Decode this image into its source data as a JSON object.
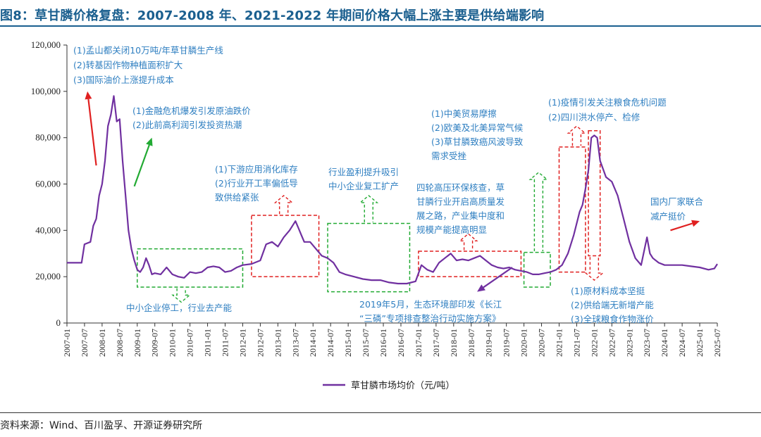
{
  "header": {
    "figure_title": "图8：草甘膦价格复盘：2007-2008 年、2021-2022 年期间价格大幅上涨主要是供给端影响"
  },
  "footer": {
    "source": "资料来源：Wind、百川盈孚、开源证券研究所"
  },
  "colors": {
    "title": "#1a5f8f",
    "series": "#7030a0",
    "annotation_text": "#2f7fc1",
    "box_red": "#e02020",
    "box_green": "#22aa33"
  },
  "chart_data": {
    "type": "line",
    "ylim": [
      0,
      120000
    ],
    "yticks": [
      "0",
      "20,000",
      "40,000",
      "60,000",
      "80,000",
      "100,000",
      "120,000"
    ],
    "ytick_values": [
      0,
      20000,
      40000,
      60000,
      80000,
      100000,
      120000
    ],
    "xticks": [
      "2007-01",
      "2007-07",
      "2008-01",
      "2008-07",
      "2009-01",
      "2009-07",
      "2010-01",
      "2010-07",
      "2011-01",
      "2011-07",
      "2012-01",
      "2012-07",
      "2013-01",
      "2013-07",
      "2014-01",
      "2014-07",
      "2015-01",
      "2015-07",
      "2016-01",
      "2016-07",
      "2017-01",
      "2017-07",
      "2018-01",
      "2018-07",
      "2019-01",
      "2019-07",
      "2020-01",
      "2020-07",
      "2021-01",
      "2021-07",
      "2022-01",
      "2022-07",
      "2023-01",
      "2023-07",
      "2024-01",
      "2024-07",
      "2025-01",
      "2025-07"
    ],
    "x_start": "2007-01",
    "x_end": "2025-07",
    "grid": false,
    "legend_position": "bottom",
    "series": [
      {
        "name": "草甘膦市场均价（元/吨）",
        "x": [
          "2007-01",
          "2007-06",
          "2007-07",
          "2007-09",
          "2007-10",
          "2007-11",
          "2007-12",
          "2008-01",
          "2008-02",
          "2008-03",
          "2008-04",
          "2008-05",
          "2008-06",
          "2008-07",
          "2008-08",
          "2008-09",
          "2008-10",
          "2008-11",
          "2008-12",
          "2009-01",
          "2009-02",
          "2009-03",
          "2009-04",
          "2009-05",
          "2009-06",
          "2009-07",
          "2009-09",
          "2009-11",
          "2010-01",
          "2010-03",
          "2010-05",
          "2010-07",
          "2010-09",
          "2010-11",
          "2011-01",
          "2011-03",
          "2011-05",
          "2011-07",
          "2011-09",
          "2011-11",
          "2012-01",
          "2012-04",
          "2012-07",
          "2012-09",
          "2012-11",
          "2013-01",
          "2013-03",
          "2013-05",
          "2013-07",
          "2013-08",
          "2013-09",
          "2013-10",
          "2013-12",
          "2014-02",
          "2014-04",
          "2014-06",
          "2014-08",
          "2014-10",
          "2014-12",
          "2015-03",
          "2015-06",
          "2015-09",
          "2015-12",
          "2016-03",
          "2016-06",
          "2016-09",
          "2016-12",
          "2017-02",
          "2017-04",
          "2017-06",
          "2017-08",
          "2017-10",
          "2017-12",
          "2018-02",
          "2018-04",
          "2018-06",
          "2018-08",
          "2018-10",
          "2018-12",
          "2019-02",
          "2019-04",
          "2019-06",
          "2019-08",
          "2019-10",
          "2019-12",
          "2020-02",
          "2020-04",
          "2020-06",
          "2020-08",
          "2020-10",
          "2020-12",
          "2021-02",
          "2021-04",
          "2021-06",
          "2021-08",
          "2021-09",
          "2021-10",
          "2021-11",
          "2021-12",
          "2022-01",
          "2022-02",
          "2022-03",
          "2022-05",
          "2022-07",
          "2022-09",
          "2022-11",
          "2023-01",
          "2023-03",
          "2023-05",
          "2023-07",
          "2023-08",
          "2023-09",
          "2023-11",
          "2024-01",
          "2024-04",
          "2024-07",
          "2024-10",
          "2025-01",
          "2025-04",
          "2025-06",
          "2025-07"
        ],
        "values": [
          26000,
          26000,
          34000,
          35000,
          42000,
          45000,
          55000,
          60000,
          70000,
          85000,
          90000,
          98000,
          87000,
          88000,
          70000,
          55000,
          40000,
          32000,
          27000,
          23000,
          22000,
          24000,
          28000,
          25000,
          21000,
          21500,
          21000,
          24000,
          21000,
          20000,
          19500,
          22000,
          21500,
          22000,
          24000,
          24500,
          24000,
          22000,
          22500,
          24000,
          25000,
          25500,
          27000,
          34000,
          35000,
          33000,
          37000,
          40000,
          44000,
          41000,
          38000,
          35000,
          35000,
          32000,
          29000,
          28000,
          26000,
          22000,
          21000,
          20000,
          19000,
          18500,
          18500,
          17500,
          17000,
          17000,
          18000,
          25000,
          23000,
          22000,
          26000,
          28000,
          30000,
          27000,
          27500,
          27000,
          28000,
          29000,
          27000,
          25000,
          24000,
          23500,
          24000,
          23000,
          22500,
          22000,
          21000,
          21000,
          21500,
          22000,
          23000,
          25000,
          30000,
          38000,
          48000,
          51000,
          58000,
          66000,
          80000,
          81000,
          80000,
          70000,
          63000,
          61000,
          55000,
          45000,
          35000,
          28000,
          25000,
          37000,
          30000,
          28000,
          26000,
          25000,
          25000,
          25000,
          24500,
          24000,
          23000,
          23500,
          25500
        ]
      }
    ],
    "annotations": {
      "a2007": [
        "(1)孟山都关闭10万吨/年草甘膦生产线",
        "(2)转基因作物种植面积扩大",
        "(3)国际油价上涨提升成本"
      ],
      "a2008": [
        "(1)金融危机爆发引发原油跌价",
        "(2)此前高利润引发投资热潮"
      ],
      "a2012": [
        "(1)下游应用消化库存",
        "(2)行业开工率偏低导",
        "致供给紧张"
      ],
      "a2014": [
        "行业盈利提升吸引",
        "中小企业复工扩产"
      ],
      "a2009": [
        "中小企业停工，行业去产能"
      ],
      "a2017": [
        "四轮高压环保核查，草",
        "甘膦行业开启高质量发",
        "展之路，产业集中度和",
        "规模产能提高明显"
      ],
      "a2018": [
        "(1)中美贸易摩擦",
        "(2)欧美及北美异常气候",
        "(3)草甘膦致癌风波导致",
        "需求受挫"
      ],
      "a2019": [
        "2019年5月，生态环境部印发《长江",
        "“三磷”专项排查整治行动实施方案》"
      ],
      "a2021": [
        "(1)疫情引发关注粮食危机问题",
        "(2)四川洪水停产、检修"
      ],
      "a2022": [
        "(1)原材料成本坚挺",
        "(2)供给端无新增产能",
        "(3)全球粮食作物涨价"
      ],
      "a2024": [
        "国内厂家联合",
        "减产挺价"
      ]
    }
  }
}
